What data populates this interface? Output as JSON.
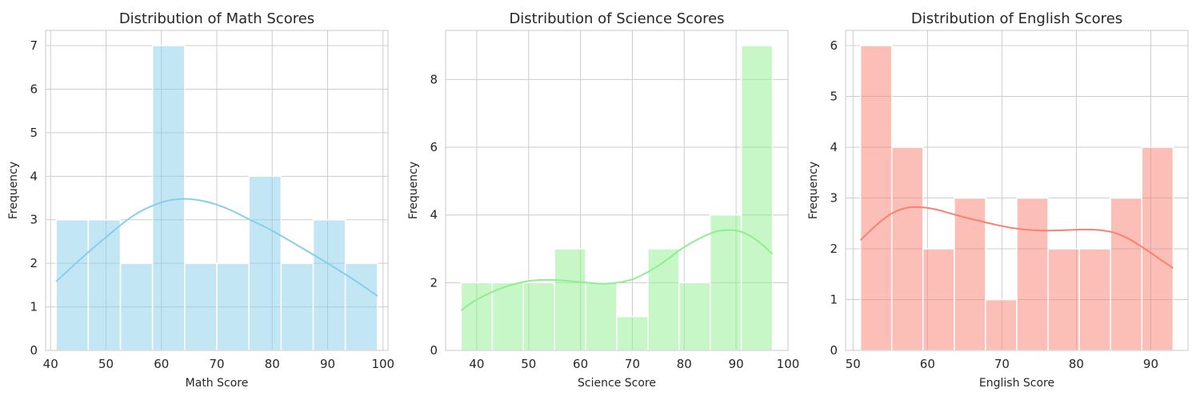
{
  "chart_data": [
    {
      "type": "bar",
      "subtype": "histogram",
      "title": "Distribution of Math Scores",
      "xlabel": "Math Score",
      "ylabel": "Frequency",
      "xlim": [
        39.1,
        100.9
      ],
      "ylim": [
        0,
        7.35
      ],
      "xticks": [
        40,
        50,
        60,
        70,
        80,
        90,
        100
      ],
      "yticks": [
        0,
        1,
        2,
        3,
        4,
        5,
        6,
        7
      ],
      "bin_edges": [
        41,
        46.8,
        52.6,
        58.4,
        64.2,
        70,
        75.8,
        81.6,
        87.4,
        93.2,
        99
      ],
      "values": [
        3,
        3,
        2,
        7,
        2,
        2,
        4,
        2,
        3,
        2
      ],
      "kde": {
        "x": [
          41,
          45,
          50,
          55,
          60,
          64,
          68,
          72,
          76,
          80,
          85,
          90,
          95,
          99
        ],
        "y": [
          1.58,
          2.05,
          2.6,
          3.1,
          3.4,
          3.48,
          3.42,
          3.25,
          3.0,
          2.75,
          2.38,
          2.0,
          1.6,
          1.25
        ]
      },
      "color": "#87ceeb",
      "grid": true
    },
    {
      "type": "bar",
      "subtype": "histogram",
      "title": "Distribution of Science Scores",
      "xlabel": "Science Score",
      "ylabel": "Frequency",
      "xlim": [
        34,
        100
      ],
      "ylim": [
        0,
        9.45
      ],
      "xticks": [
        40,
        50,
        60,
        70,
        80,
        90,
        100
      ],
      "yticks": [
        0,
        2,
        4,
        6,
        8
      ],
      "bin_edges": [
        37,
        43,
        49,
        55,
        61,
        67,
        73,
        79,
        85,
        91,
        97
      ],
      "values": [
        2,
        2,
        2,
        3,
        2,
        1,
        3,
        2,
        4,
        9
      ],
      "kde": {
        "x": [
          37,
          40,
          45,
          50,
          55,
          60,
          65,
          70,
          75,
          80,
          85,
          88,
          91,
          94,
          97
        ],
        "y": [
          1.18,
          1.5,
          1.85,
          2.05,
          2.08,
          2.02,
          1.97,
          2.1,
          2.5,
          3.05,
          3.45,
          3.55,
          3.5,
          3.25,
          2.85
        ]
      },
      "color": "#90ee90",
      "grid": true
    },
    {
      "type": "bar",
      "subtype": "histogram",
      "title": "Distribution of English Scores",
      "xlabel": "English Score",
      "ylabel": "Frequency",
      "xlim": [
        49,
        95
      ],
      "ylim": [
        0,
        6.3
      ],
      "xticks": [
        50,
        60,
        70,
        80,
        90
      ],
      "yticks": [
        0,
        1,
        2,
        3,
        4,
        5,
        6
      ],
      "bin_edges": [
        51,
        55.2,
        59.4,
        63.6,
        67.8,
        72,
        76.2,
        80.4,
        84.6,
        88.8,
        93
      ],
      "values": [
        6,
        4,
        2,
        3,
        1,
        3,
        2,
        2,
        3,
        4
      ],
      "kde": {
        "x": [
          51,
          53,
          55,
          57,
          59,
          61,
          63,
          65,
          67,
          69,
          71,
          73,
          75,
          77,
          79,
          81,
          83,
          85,
          87,
          89,
          91,
          93
        ],
        "y": [
          2.17,
          2.45,
          2.68,
          2.8,
          2.82,
          2.78,
          2.7,
          2.62,
          2.55,
          2.48,
          2.42,
          2.38,
          2.36,
          2.36,
          2.37,
          2.38,
          2.37,
          2.32,
          2.2,
          2.02,
          1.82,
          1.62
        ]
      },
      "color": "#fa8072",
      "grid": true
    }
  ]
}
